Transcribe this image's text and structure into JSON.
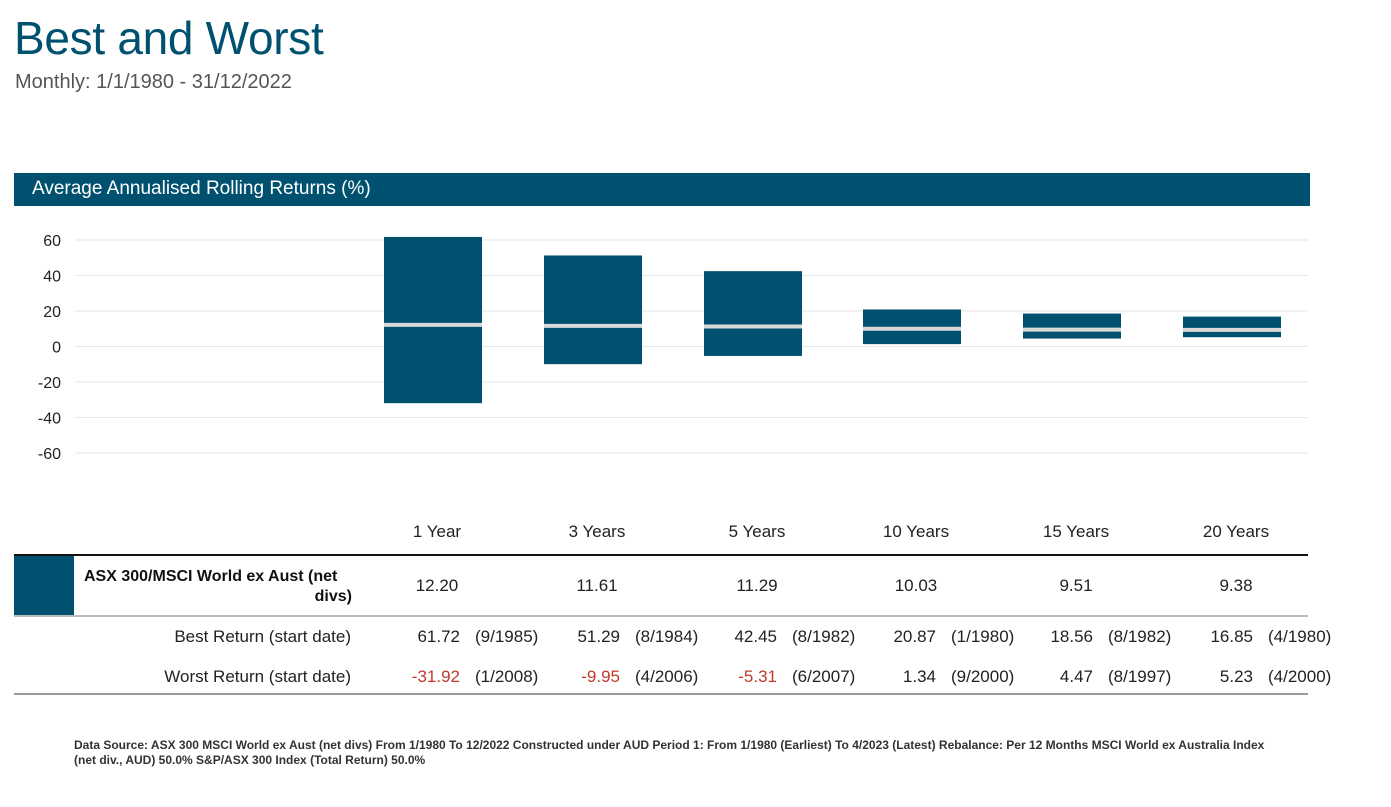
{
  "page": {
    "title": "Best and Worst",
    "subtitle": "Monthly: 1/1/1980 - 31/12/2022",
    "chart_banner": "Average Annualised Rolling Returns (%)",
    "footnote": "Data Source: ASX 300 MSCI World ex Aust (net divs) From 1/1980 To 12/2022 Constructed under AUD Period 1: From 1/1980 (Earliest) To 4/2023 (Latest) Rebalance: Per 12 Months MSCI World ex Australia Index (net div., AUD) 50.0% S&P/ASX 300 Index (Total Return) 50.0%"
  },
  "colors": {
    "bar": "#00516f",
    "average_line": "#d9d9d9",
    "negative_text": "#c0392b",
    "grid": "#e6e6e6"
  },
  "chart_data": {
    "type": "bar",
    "subtype": "floating-range",
    "categories": [
      "1 Year",
      "3 Years",
      "5 Years",
      "10 Years",
      "15 Years",
      "20 Years"
    ],
    "ylim": [
      -60,
      60
    ],
    "yticks": [
      "60",
      "40",
      "20",
      "0",
      "-20",
      "-40",
      "-60"
    ],
    "grid": true,
    "series": [
      {
        "name": "ASX 300/MSCI World ex Aust (net divs)",
        "average": [
          12.2,
          11.61,
          11.29,
          10.03,
          9.51,
          9.38
        ],
        "best": [
          61.72,
          51.29,
          42.45,
          20.87,
          18.56,
          16.85
        ],
        "worst": [
          -31.92,
          -9.95,
          -5.31,
          1.34,
          4.47,
          5.23
        ]
      }
    ]
  },
  "table": {
    "series_name_line1": "ASX 300/MSCI World ex Aust (net",
    "series_name_line2": "divs)",
    "averages": [
      "12.20",
      "11.61",
      "11.29",
      "10.03",
      "9.51",
      "9.38"
    ],
    "best_label": "Best Return (start date)",
    "worst_label": "Worst Return (start date)",
    "best": [
      {
        "value": "61.72",
        "date": "(9/1985)"
      },
      {
        "value": "51.29",
        "date": "(8/1984)"
      },
      {
        "value": "42.45",
        "date": "(8/1982)"
      },
      {
        "value": "20.87",
        "date": "(1/1980)"
      },
      {
        "value": "18.56",
        "date": "(8/1982)"
      },
      {
        "value": "16.85",
        "date": "(4/1980)"
      }
    ],
    "worst": [
      {
        "value": "-31.92",
        "date": "(1/2008)"
      },
      {
        "value": "-9.95",
        "date": "(4/2006)"
      },
      {
        "value": "-5.31",
        "date": "(6/2007)"
      },
      {
        "value": "1.34",
        "date": "(9/2000)"
      },
      {
        "value": "4.47",
        "date": "(8/1997)"
      },
      {
        "value": "5.23",
        "date": "(4/2000)"
      }
    ]
  }
}
